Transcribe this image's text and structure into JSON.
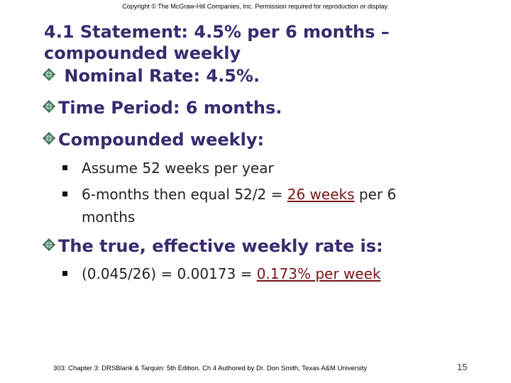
{
  "header": {
    "copyright": "Copyright © The McGraw-Hill Companies, Inc. Permission required for reproduction or display."
  },
  "slide": {
    "title": "4.1 Statement: 4.5% per 6 months – compounded weekly",
    "bullets": [
      {
        "text": " Nominal Rate: 4.5%.",
        "icon": "diamond-icon"
      },
      {
        "text": "Time Period: 6 months.",
        "icon": "diamond-icon"
      },
      {
        "text": "Compounded weekly:",
        "icon": "diamond-icon",
        "subs": [
          {
            "text": "Assume 52 weeks per year"
          },
          {
            "pre": "6-months then equal 52/2 = ",
            "highlight": "26 weeks",
            "post": " per 6 months"
          }
        ]
      },
      {
        "text": "The true, effective weekly rate is:",
        "icon": "diamond-icon",
        "subs": [
          {
            "pre": "(0.045/26) = 0.00173 = ",
            "highlight": "0.173% per week",
            "post": ""
          }
        ]
      }
    ]
  },
  "footer": {
    "text": "303: Chapter 3: DRSBlank & Tarquin: 5th Edition. Ch 4 Authored by Dr. Don Smith, Texas A&M University",
    "page_number": "15"
  },
  "colors": {
    "title": "#3a2a6e",
    "highlight": "#7a1414",
    "diamond_light": "#b8d4c0",
    "diamond_dark": "#3d6e58"
  }
}
